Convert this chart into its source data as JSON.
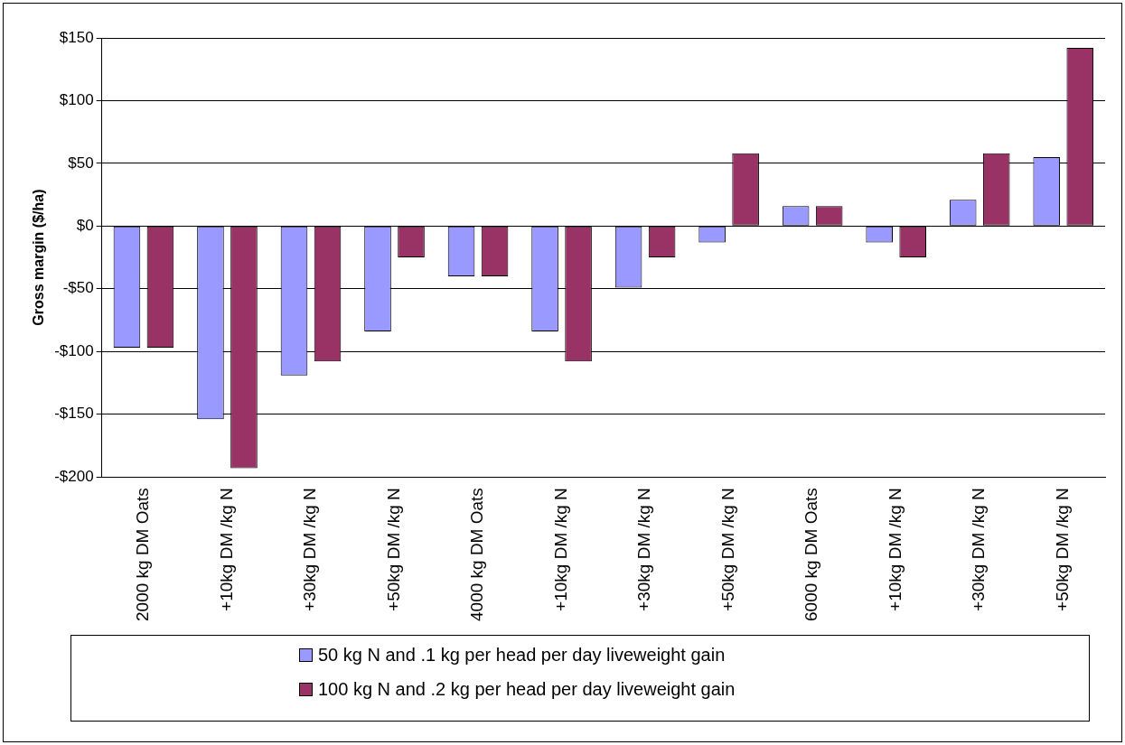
{
  "chart_data": {
    "type": "bar",
    "ylabel": "Gross margin ($/ha)",
    "categories": [
      "2000 kg DM Oats",
      "+10kg DM /kg N",
      "+30kg DM /kg N",
      "+50kg DM /kg N",
      "4000 kg DM Oats",
      "+10kg DM /kg N",
      "+30kg DM /kg N",
      "+50kg DM /kg N",
      "6000 kg DM Oats",
      "+10kg DM /kg N",
      "+30kg DM /kg N",
      "+50kg DM /kg N"
    ],
    "series": [
      {
        "name": "50 kg N and .1 kg per head per day liveweight gain",
        "color": "#9999ff",
        "values": [
          -97,
          -154,
          -119,
          -84,
          -40,
          -84,
          -49,
          -13,
          16,
          -13,
          21,
          55
        ]
      },
      {
        "name": "100 kg N and .2 kg per head per day liveweight gain",
        "color": "#993366",
        "values": [
          -97,
          -193,
          -108,
          -25,
          -40,
          -108,
          -25,
          58,
          16,
          -25,
          58,
          142
        ]
      }
    ],
    "ylim": [
      -200,
      150
    ],
    "yticks": [
      {
        "value": -200,
        "label": "-$200"
      },
      {
        "value": -150,
        "label": "-$150"
      },
      {
        "value": -100,
        "label": "-$100"
      },
      {
        "value": -50,
        "label": "-$50"
      },
      {
        "value": 0,
        "label": "$0"
      },
      {
        "value": 50,
        "label": "$50"
      },
      {
        "value": 100,
        "label": "$100"
      },
      {
        "value": 150,
        "label": "$150"
      }
    ],
    "grid": "y",
    "legend": "bottom"
  }
}
